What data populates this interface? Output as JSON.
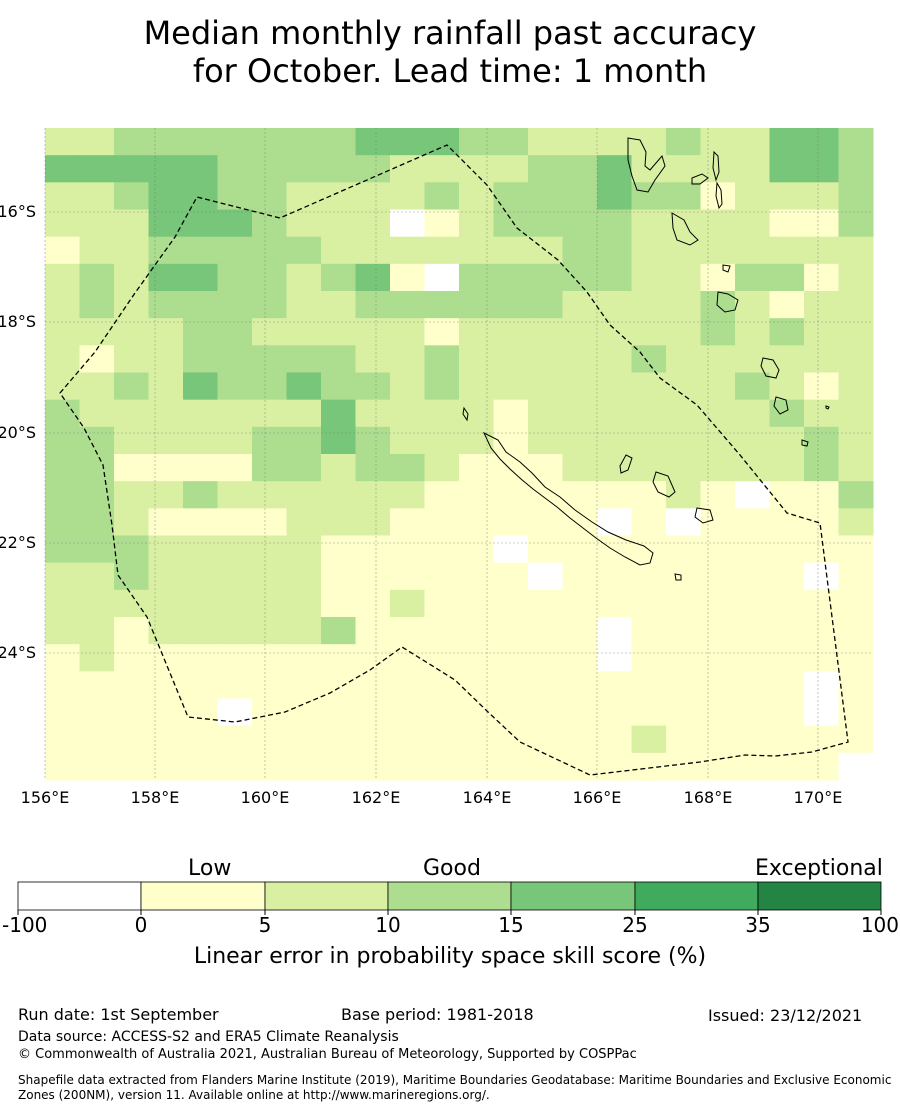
{
  "title_line1": "Median monthly rainfall past accuracy",
  "title_line2": "for October. Lead time: 1 month",
  "map": {
    "lon_range": [
      156,
      171
    ],
    "lat_range": [
      -26.5,
      -14.7
    ],
    "lon_ticks": [
      "156°E",
      "158°E",
      "160°E",
      "162°E",
      "164°E",
      "166°E",
      "168°E",
      "170°E"
    ],
    "lat_ticks": [
      "16°S",
      "18°S",
      "20°S",
      "22°S",
      "24°S"
    ]
  },
  "colorbar": {
    "categories": [
      "Low",
      "Good",
      "Exceptional"
    ],
    "bounds": [
      "-100",
      "0",
      "5",
      "10",
      "15",
      "25",
      "35",
      "100"
    ],
    "colors": [
      "#ffffff",
      "#ffffcc",
      "#d9f0a3",
      "#addd8e",
      "#78c679",
      "#41ab5d",
      "#238443"
    ],
    "label": "Linear error in probability space skill score (%)"
  },
  "chart_data": {
    "type": "heatmap",
    "title": "Median monthly rainfall past accuracy for October. Lead time: 1 month",
    "colorbar_label": "Linear error in probability space skill score (%)",
    "class_levels": [
      "<0",
      "0-5",
      "5-10",
      "10-15",
      "15-25",
      "25-35",
      "35-100"
    ],
    "grid_rows": [
      "223333333444332222322443",
      "444443333322223342222443",
      "223443322223233343312223",
      "222444322201233332222113",
      "122333332222222332222222",
      "232443323410333332213312",
      "232333322333333222232122",
      "222233222221222222232322",
      "212233333223222223222222",
      "223243343323222222223212",
      "322222224222212222222322",
      "332222334322212222222232",
      "331111332332111222222232",
      "332232222221111111210113",
      "332111122211111101011112",
      "333222221111101111111111",
      "223222221111110111111101",
      "222222221121111111111111",
      "221222223111111101111111",
      "121111111111111101111111",
      "111111111111111111111101",
      "111110111111111111111101",
      "111111111111111112111111",
      "111111111111111111111110"
    ]
  },
  "footer": {
    "run_date": "Run date: 1st September",
    "base_period": "Base period: 1981-2018",
    "issued": "Issued: 23/12/2021",
    "data_source": "Data source: ACCESS-S2 and ERA5 Climate Reanalysis",
    "copyright": "© Commonwealth of Australia 2021, Australian Bureau of Meteorology, Supported by COSPPac",
    "shapefile": "Shapefile data extracted from Flanders Marine Institute (2019), Maritime Boundaries Geodatabase: Maritime Boundaries and Exclusive Economic Zones (200NM), version 11. Available online at http://www.marineregions.org/."
  }
}
